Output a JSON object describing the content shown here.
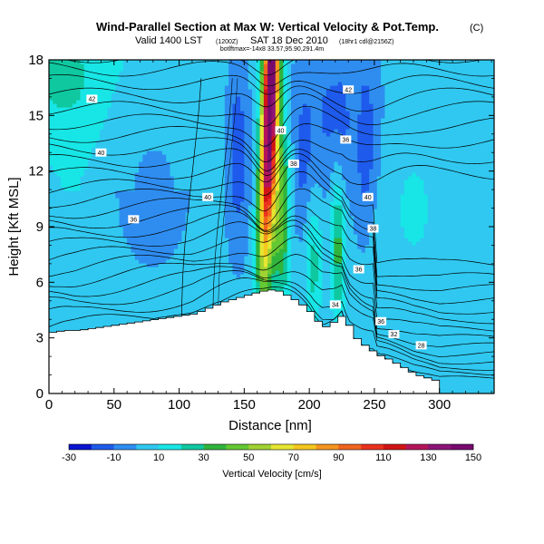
{
  "chart_data": {
    "type": "heatmap",
    "title": "Wind-Parallel Section at Max W: Vertical Velocity & Pot.Temp.",
    "title_mark": "(C)",
    "subtitle_main": "Valid 1400 LST",
    "subtitle_time": "(1200Z)",
    "subtitle_date": "SAT 18 Dec 2010",
    "subtitle_run": "(18hr1 cdl@2156Z)",
    "subtitle_small": "botlftmax=-14x8 33.57,95.90,291.4m",
    "xlabel": "Distance [nm]",
    "ylabel": "Height [Kft MSL]",
    "xlim": [
      0,
      342
    ],
    "ylim": [
      0,
      18
    ],
    "xticks": [
      0,
      50,
      100,
      150,
      200,
      250,
      300
    ],
    "xtick_labels": [
      "0",
      "50",
      "100",
      "150",
      "200",
      "250",
      "300"
    ],
    "yticks": [
      0,
      3,
      6,
      9,
      12,
      15,
      18
    ],
    "ytick_labels": [
      "0",
      "3",
      "6",
      "9",
      "12",
      "15",
      "18"
    ],
    "colorbar": {
      "label": "Vertical Velocity [cm/s]",
      "bounds": [
        -30,
        -20,
        -10,
        0,
        10,
        20,
        30,
        40,
        50,
        60,
        70,
        80,
        90,
        100,
        110,
        120,
        130,
        140,
        150
      ],
      "tick_values": [
        -30,
        -10,
        10,
        30,
        50,
        70,
        90,
        110,
        130,
        150
      ],
      "tick_labels": [
        "-30",
        "-10",
        "10",
        "30",
        "50",
        "70",
        "90",
        "110",
        "130",
        "150"
      ],
      "colors": [
        "#0a14d2",
        "#1e5aeb",
        "#2f8df0",
        "#30c8f0",
        "#18e6e6",
        "#0fc8a0",
        "#30b43c",
        "#64c832",
        "#a0d232",
        "#e6e632",
        "#f5c81e",
        "#f5961e",
        "#f0641e",
        "#eb321e",
        "#d21414",
        "#b4145a",
        "#8c1478",
        "#780a6e"
      ]
    },
    "terrain_profile": {
      "x": [
        0,
        10,
        20,
        30,
        40,
        50,
        60,
        70,
        80,
        90,
        100,
        110,
        120,
        130,
        140,
        150,
        160,
        170,
        175,
        180,
        190,
        200,
        205,
        210,
        220,
        225,
        230,
        240,
        250,
        260,
        270,
        280,
        290,
        300
      ],
      "height": [
        3.3,
        3.4,
        3.4,
        3.5,
        3.6,
        3.7,
        3.8,
        3.9,
        4.0,
        4.1,
        4.2,
        4.3,
        4.6,
        4.9,
        5.1,
        5.3,
        5.5,
        5.6,
        5.5,
        5.3,
        4.9,
        4.3,
        3.8,
        3.6,
        4.0,
        4.4,
        3.2,
        2.6,
        2.1,
        1.8,
        1.4,
        1.0,
        0.8,
        0.6
      ]
    },
    "updraft_max_cm_s": 150,
    "theta_contour_labels": [
      "42",
      "40",
      "36",
      "40",
      "42",
      "40",
      "38",
      "36",
      "40",
      "38",
      "36",
      "34",
      "36",
      "32",
      "28"
    ]
  }
}
